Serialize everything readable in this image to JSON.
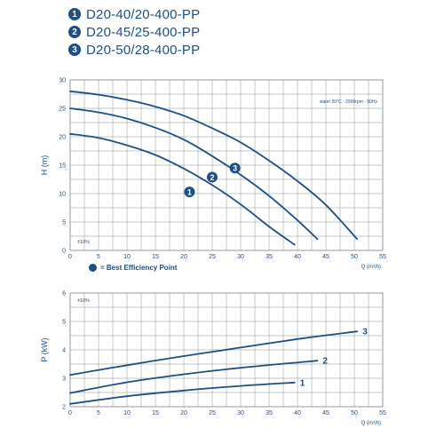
{
  "legend": [
    {
      "number": "1",
      "model": "D20-40/20-400-PP"
    },
    {
      "number": "2",
      "model": "D20-45/25-400-PP"
    },
    {
      "number": "3",
      "model": "D20-50/28-400-PP"
    }
  ],
  "bep_legend": "= Best Efficiency Point",
  "colors": {
    "curve": "#1d4f86",
    "grid": "#8a8f96",
    "text": "#1d4f86"
  },
  "chart_data": [
    {
      "type": "line",
      "ylabel": "H (m)",
      "xlabel": "Q (m³/h)",
      "annotation": "water 20°C - 2900rpm - 50Hz",
      "tolerance": "±10%",
      "xlim": [
        0,
        55
      ],
      "ylim": [
        0,
        30
      ],
      "xticks": [
        0,
        5,
        10,
        15,
        20,
        25,
        30,
        35,
        40,
        45,
        50,
        55
      ],
      "yticks": [
        0,
        5,
        10,
        15,
        20,
        25,
        30
      ],
      "grid": true,
      "series": [
        {
          "label": "1",
          "x": [
            0,
            5,
            10,
            15,
            20,
            25,
            30,
            35,
            39.5
          ],
          "y": [
            20.5,
            19.8,
            18.5,
            16.8,
            14.4,
            11.5,
            8.1,
            4.2,
            1.0
          ],
          "bep": [
            21,
            10.3
          ]
        },
        {
          "label": "2",
          "x": [
            0,
            5,
            10,
            15,
            20,
            25,
            30,
            35,
            40,
            43.5
          ],
          "y": [
            25,
            24.3,
            23.2,
            21.6,
            19.5,
            16.6,
            13.3,
            9.6,
            5.3,
            2.0
          ],
          "bep": [
            25,
            12.9
          ]
        },
        {
          "label": "3",
          "x": [
            0,
            5,
            10,
            15,
            20,
            25,
            30,
            35,
            40,
            45,
            50.5
          ],
          "y": [
            28,
            27.4,
            26.5,
            25.3,
            23.7,
            21.5,
            19.0,
            15.8,
            12.2,
            8.0,
            2.0
          ],
          "bep": [
            29,
            14.5
          ]
        }
      ]
    },
    {
      "type": "line",
      "ylabel": "P (kW)",
      "xlabel": "Q (m³/h)",
      "tolerance": "±10%",
      "xlim": [
        0,
        55
      ],
      "ylim": [
        2,
        6
      ],
      "xticks": [
        0,
        5,
        10,
        15,
        20,
        25,
        30,
        35,
        40,
        45,
        50,
        55
      ],
      "yticks": [
        2,
        3,
        4,
        5,
        6
      ],
      "grid": true,
      "series": [
        {
          "label": "1",
          "x": [
            0,
            10,
            20,
            30,
            39.5
          ],
          "y": [
            2.1,
            2.37,
            2.57,
            2.73,
            2.85
          ]
        },
        {
          "label": "2",
          "x": [
            0,
            10,
            20,
            30,
            43.5
          ],
          "y": [
            2.48,
            2.86,
            3.14,
            3.37,
            3.62
          ]
        },
        {
          "label": "3",
          "x": [
            0,
            10,
            20,
            30,
            40,
            50.5
          ],
          "y": [
            3.12,
            3.46,
            3.78,
            4.08,
            4.38,
            4.65
          ]
        }
      ]
    }
  ]
}
